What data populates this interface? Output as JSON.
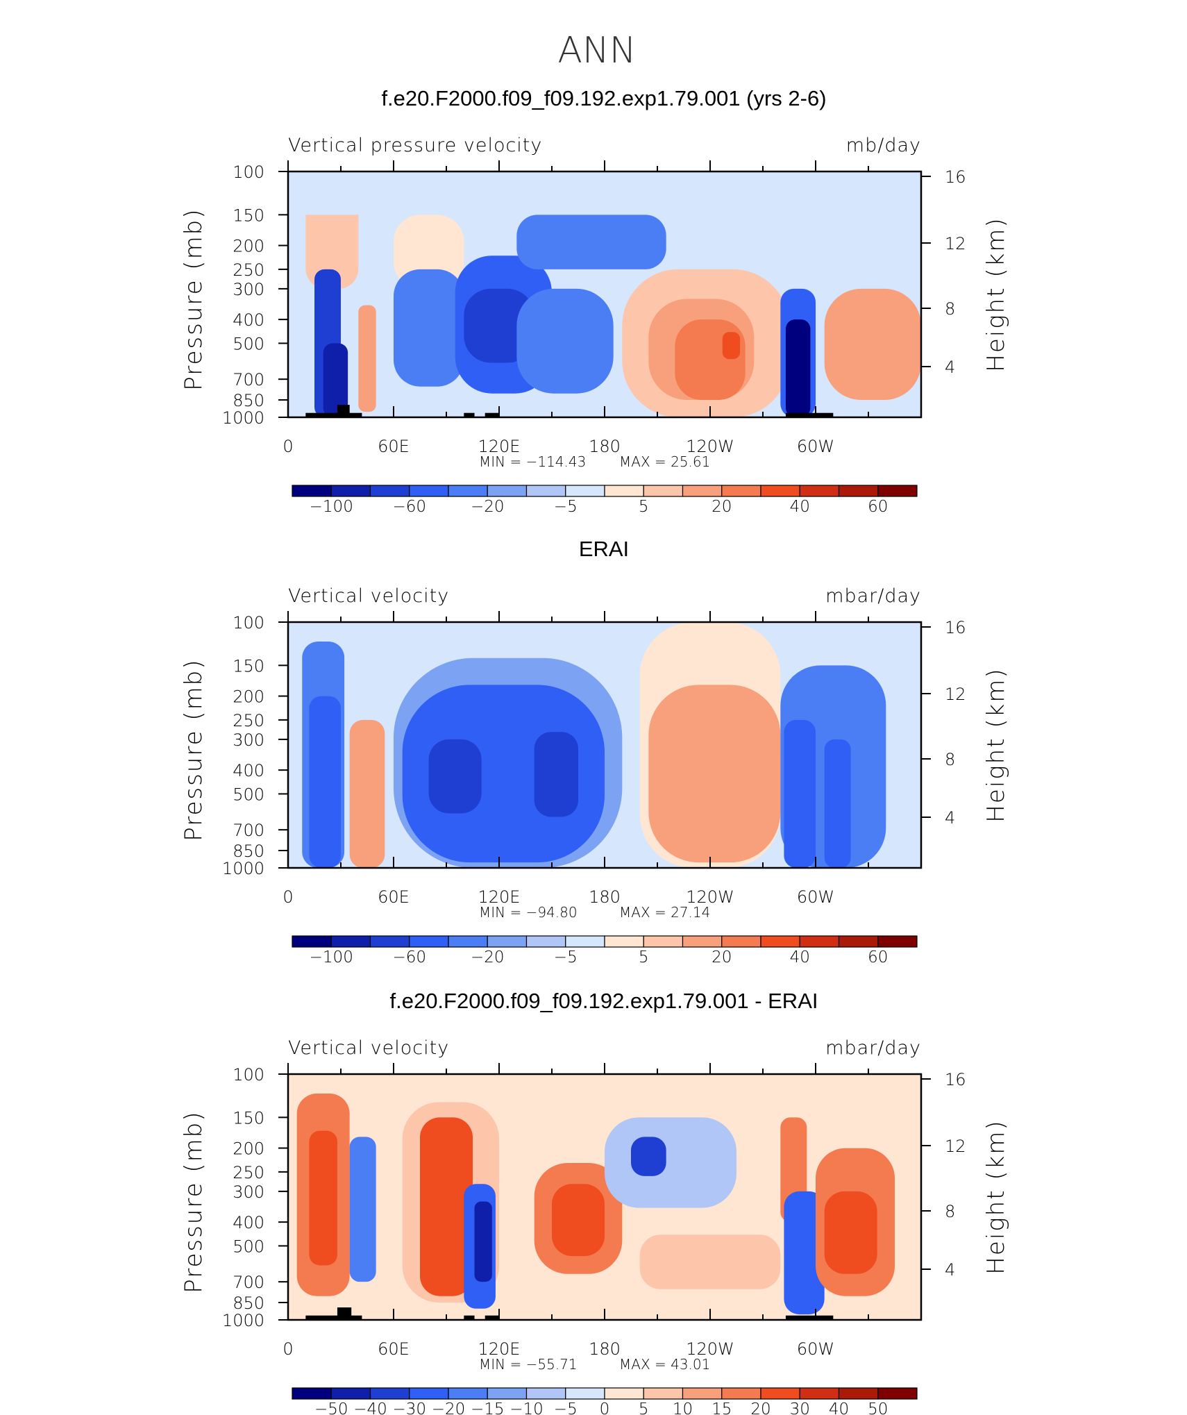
{
  "figure": {
    "season": "ANN"
  },
  "chart_data": [
    {
      "type": "heatmap",
      "title": "f.e20.F2000.f09_f09.192.exp1.79.001 (yrs 2-6)",
      "variable_label": "Vertical pressure velocity",
      "units_label": "mb/day",
      "ylabel": "Pressure (mb)",
      "ylabel_right": "Height (km)",
      "x_tick_labels": [
        "0",
        "60E",
        "120E",
        "180",
        "120W",
        "60W"
      ],
      "y_tick_labels": [
        "100",
        "150",
        "200",
        "250",
        "300",
        "400",
        "500",
        "700",
        "850",
        "1000"
      ],
      "y_right_tick_labels": [
        "16",
        "12",
        "8",
        "4"
      ],
      "min_label": "MIN =  −114.43",
      "max_label": "MAX =   25.61",
      "colorbar_labels": [
        "−100",
        "−60",
        "−20",
        "−5",
        "5",
        "20",
        "40",
        "60"
      ],
      "xlim": [
        0,
        360
      ],
      "ylim": [
        1000,
        100
      ],
      "y_scale": "log",
      "field_min": -114.43,
      "field_max": 25.61,
      "colorbar": "bottom",
      "regions": [
        {
          "lon": [
            10,
            40
          ],
          "p": [
            100,
            300
          ],
          "value": 7
        },
        {
          "lon": [
            0,
            360
          ],
          "p": [
            100,
            150
          ],
          "value": -3
        },
        {
          "lon": [
            15,
            30
          ],
          "p": [
            250,
            1000
          ],
          "value": -60
        },
        {
          "lon": [
            20,
            34
          ],
          "p": [
            500,
            1000
          ],
          "value": -90
        },
        {
          "lon": [
            40,
            50
          ],
          "p": [
            350,
            950
          ],
          "value": 12
        },
        {
          "lon": [
            60,
            100
          ],
          "p": [
            150,
            300
          ],
          "value": 3
        },
        {
          "lon": [
            60,
            100
          ],
          "p": [
            250,
            750
          ],
          "value": -22
        },
        {
          "lon": [
            95,
            150
          ],
          "p": [
            220,
            800
          ],
          "value": -45
        },
        {
          "lon": [
            100,
            140
          ],
          "p": [
            300,
            600
          ],
          "value": -75
        },
        {
          "lon": [
            130,
            215
          ],
          "p": [
            150,
            250
          ],
          "value": -22
        },
        {
          "lon": [
            130,
            185
          ],
          "p": [
            300,
            800
          ],
          "value": -35
        },
        {
          "lon": [
            190,
            285
          ],
          "p": [
            250,
            1000
          ],
          "value": 7
        },
        {
          "lon": [
            205,
            265
          ],
          "p": [
            330,
            850
          ],
          "value": 14
        },
        {
          "lon": [
            220,
            260
          ],
          "p": [
            400,
            850
          ],
          "value": 24
        },
        {
          "lon": [
            247,
            257
          ],
          "p": [
            450,
            580
          ],
          "value": 40
        },
        {
          "lon": [
            280,
            300
          ],
          "p": [
            300,
            1000
          ],
          "value": -45
        },
        {
          "lon": [
            283,
            297
          ],
          "p": [
            400,
            1000
          ],
          "value": -100
        },
        {
          "lon": [
            305,
            360
          ],
          "p": [
            300,
            850
          ],
          "value": 13
        }
      ],
      "topography": [
        {
          "lon": [
            10,
            42
          ],
          "p_top": 960
        },
        {
          "lon": [
            28,
            35
          ],
          "p_top": 890
        },
        {
          "lon": [
            100,
            106
          ],
          "p_top": 960
        },
        {
          "lon": [
            112,
            120
          ],
          "p_top": 960
        },
        {
          "lon": [
            283,
            310
          ],
          "p_top": 960
        }
      ]
    },
    {
      "type": "heatmap",
      "title": "ERAI",
      "variable_label": "Vertical velocity",
      "units_label": "mbar/day",
      "ylabel": "Pressure (mb)",
      "ylabel_right": "Height (km)",
      "x_tick_labels": [
        "0",
        "60E",
        "120E",
        "180",
        "120W",
        "60W"
      ],
      "y_tick_labels": [
        "100",
        "150",
        "200",
        "250",
        "300",
        "400",
        "500",
        "700",
        "850",
        "1000"
      ],
      "y_right_tick_labels": [
        "16",
        "12",
        "8",
        "4"
      ],
      "min_label": "MIN =  −94.80",
      "max_label": "MAX =   27.14",
      "colorbar_labels": [
        "−100",
        "−60",
        "−20",
        "−5",
        "5",
        "20",
        "40",
        "60"
      ],
      "xlim": [
        0,
        360
      ],
      "ylim": [
        1000,
        100
      ],
      "y_scale": "log",
      "field_min": -94.8,
      "field_max": 27.14,
      "colorbar": "bottom",
      "regions": [
        {
          "lon": [
            0,
            360
          ],
          "p": [
            100,
            130
          ],
          "value": -3
        },
        {
          "lon": [
            8,
            32
          ],
          "p": [
            120,
            1000
          ],
          "value": -30
        },
        {
          "lon": [
            12,
            30
          ],
          "p": [
            200,
            1000
          ],
          "value": -55
        },
        {
          "lon": [
            35,
            55
          ],
          "p": [
            250,
            1000
          ],
          "value": 15
        },
        {
          "lon": [
            60,
            190
          ],
          "p": [
            140,
            1000
          ],
          "value": -15
        },
        {
          "lon": [
            65,
            180
          ],
          "p": [
            180,
            950
          ],
          "value": -40
        },
        {
          "lon": [
            80,
            110
          ],
          "p": [
            300,
            600
          ],
          "value": -60
        },
        {
          "lon": [
            140,
            165
          ],
          "p": [
            280,
            620
          ],
          "value": -60
        },
        {
          "lon": [
            200,
            280
          ],
          "p": [
            100,
            1000
          ],
          "value": 4
        },
        {
          "lon": [
            205,
            280
          ],
          "p": [
            180,
            950
          ],
          "value": 12
        },
        {
          "lon": [
            225,
            280
          ],
          "p": [
            250,
            800
          ],
          "value": 18
        },
        {
          "lon": [
            280,
            340
          ],
          "p": [
            150,
            1000
          ],
          "value": -20
        },
        {
          "lon": [
            282,
            300
          ],
          "p": [
            250,
            1000
          ],
          "value": -55
        },
        {
          "lon": [
            305,
            320
          ],
          "p": [
            300,
            1000
          ],
          "value": -45
        }
      ],
      "topography": []
    },
    {
      "type": "heatmap",
      "title": "f.e20.F2000.f09_f09.192.exp1.79.001 - ERAI",
      "variable_label": "Vertical velocity",
      "units_label": "mbar/day",
      "ylabel": "Pressure (mb)",
      "ylabel_right": "Height (km)",
      "x_tick_labels": [
        "0",
        "60E",
        "120E",
        "180",
        "120W",
        "60W"
      ],
      "y_tick_labels": [
        "100",
        "150",
        "200",
        "250",
        "300",
        "400",
        "500",
        "700",
        "850",
        "1000"
      ],
      "y_right_tick_labels": [
        "16",
        "12",
        "8",
        "4"
      ],
      "min_label": "MIN =  −55.71",
      "max_label": "MAX =   43.01",
      "colorbar_labels": [
        "−50",
        "−40",
        "−30",
        "−20",
        "−15",
        "−10",
        "−5",
        "0",
        "5",
        "10",
        "15",
        "20",
        "30",
        "40",
        "50"
      ],
      "xlim": [
        0,
        360
      ],
      "ylim": [
        1000,
        100
      ],
      "y_scale": "log",
      "field_min": -55.71,
      "field_max": 43.01,
      "colorbar": "bottom",
      "regions": [
        {
          "lon": [
            5,
            35
          ],
          "p": [
            120,
            800
          ],
          "value": 18
        },
        {
          "lon": [
            12,
            28
          ],
          "p": [
            170,
            600
          ],
          "value": 30
        },
        {
          "lon": [
            35,
            50
          ],
          "p": [
            180,
            700
          ],
          "value": -15
        },
        {
          "lon": [
            65,
            120
          ],
          "p": [
            130,
            850
          ],
          "value": 8
        },
        {
          "lon": [
            75,
            105
          ],
          "p": [
            150,
            800
          ],
          "value": 22
        },
        {
          "lon": [
            100,
            118
          ],
          "p": [
            280,
            900
          ],
          "value": -25
        },
        {
          "lon": [
            106,
            116
          ],
          "p": [
            330,
            700
          ],
          "value": -45
        },
        {
          "lon": [
            140,
            190
          ],
          "p": [
            230,
            650
          ],
          "value": 18
        },
        {
          "lon": [
            150,
            180
          ],
          "p": [
            280,
            550
          ],
          "value": 30
        },
        {
          "lon": [
            180,
            255
          ],
          "p": [
            150,
            350
          ],
          "value": -8
        },
        {
          "lon": [
            195,
            215
          ],
          "p": [
            180,
            260
          ],
          "value": -30
        },
        {
          "lon": [
            200,
            280
          ],
          "p": [
            450,
            750
          ],
          "value": 6
        },
        {
          "lon": [
            280,
            295
          ],
          "p": [
            150,
            400
          ],
          "value": 20
        },
        {
          "lon": [
            282,
            305
          ],
          "p": [
            300,
            950
          ],
          "value": -25
        },
        {
          "lon": [
            300,
            345
          ],
          "p": [
            200,
            800
          ],
          "value": 18
        },
        {
          "lon": [
            305,
            335
          ],
          "p": [
            300,
            650
          ],
          "value": 30
        }
      ],
      "topography": [
        {
          "lon": [
            10,
            42
          ],
          "p_top": 960
        },
        {
          "lon": [
            28,
            36
          ],
          "p_top": 890
        },
        {
          "lon": [
            100,
            106
          ],
          "p_top": 960
        },
        {
          "lon": [
            112,
            120
          ],
          "p_top": 960
        },
        {
          "lon": [
            283,
            310
          ],
          "p_top": 960
        }
      ]
    }
  ],
  "palettes": {
    "main": [
      "#00007f",
      "#0f1fa9",
      "#1f3fd2",
      "#2f5ff5",
      "#4b7ef4",
      "#7ca3f3",
      "#afc6f6",
      "#d6e6fd",
      "#ffe6d2",
      "#fdc5aa",
      "#f89f7c",
      "#f47a50",
      "#ef4c20",
      "#d12f13",
      "#ab1a09",
      "#7f0000"
    ],
    "diff": [
      "#00007f",
      "#0f1fa9",
      "#1f3fd2",
      "#2f5ff5",
      "#4b7ef4",
      "#7ca3f3",
      "#afc6f6",
      "#d6e6fd",
      "#ffe6d2",
      "#fdc5aa",
      "#f89f7c",
      "#f47a50",
      "#ef4c20",
      "#d12f13",
      "#ab1a09",
      "#7f0000"
    ]
  },
  "colors": {
    "axis": "#000000",
    "background": "#ffffff",
    "topography": "#000000"
  }
}
